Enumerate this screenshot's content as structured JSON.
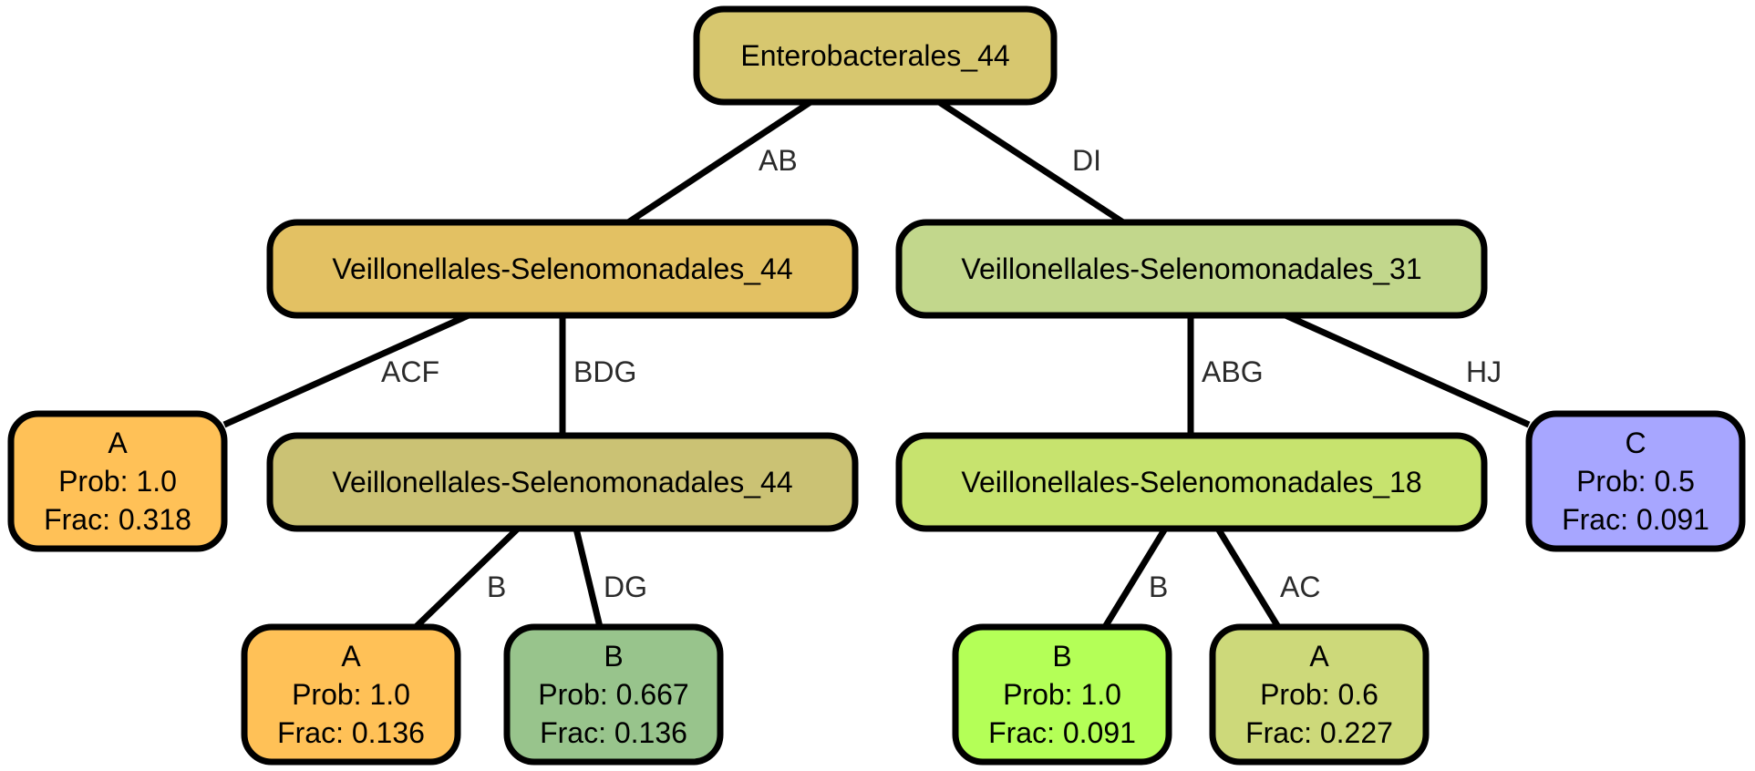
{
  "nodes": [
    {
      "id": "root",
      "lines": [
        "Enterobacterales_44"
      ],
      "fill": "#d7c76f"
    },
    {
      "id": "vs44a",
      "lines": [
        "Veillonellales-Selenomonadales_44"
      ],
      "fill": "#e3c163"
    },
    {
      "id": "vs31",
      "lines": [
        "Veillonellales-Selenomonadales_31"
      ],
      "fill": "#c2d78c"
    },
    {
      "id": "leafA1",
      "lines": [
        "A",
        "Prob: 1.0",
        "Frac: 0.318"
      ],
      "fill": "#ffc157"
    },
    {
      "id": "vs44b",
      "lines": [
        "Veillonellales-Selenomonadales_44"
      ],
      "fill": "#cbc274"
    },
    {
      "id": "vs18",
      "lines": [
        "Veillonellales-Selenomonadales_18"
      ],
      "fill": "#c7e36e"
    },
    {
      "id": "leafC",
      "lines": [
        "C",
        "Prob: 0.5",
        "Frac: 0.091"
      ],
      "fill": "#a7a6ff"
    },
    {
      "id": "leafA2",
      "lines": [
        "A",
        "Prob: 1.0",
        "Frac: 0.136"
      ],
      "fill": "#ffc157"
    },
    {
      "id": "leafB1",
      "lines": [
        "B",
        "Prob: 0.667",
        "Frac: 0.136"
      ],
      "fill": "#98c48c"
    },
    {
      "id": "leafB2",
      "lines": [
        "B",
        "Prob: 1.0",
        "Frac: 0.091"
      ],
      "fill": "#b4ff57"
    },
    {
      "id": "leafA3",
      "lines": [
        "A",
        "Prob: 0.6",
        "Frac: 0.227"
      ],
      "fill": "#cdd97a"
    }
  ],
  "edges": [
    {
      "from": "root",
      "to": "vs44a",
      "label": "AB"
    },
    {
      "from": "root",
      "to": "vs31",
      "label": "DI"
    },
    {
      "from": "vs44a",
      "to": "leafA1",
      "label": "ACF"
    },
    {
      "from": "vs44a",
      "to": "vs44b",
      "label": "BDG"
    },
    {
      "from": "vs31",
      "to": "vs18",
      "label": "ABG"
    },
    {
      "from": "vs31",
      "to": "leafC",
      "label": "HJ"
    },
    {
      "from": "vs44b",
      "to": "leafA2",
      "label": "B"
    },
    {
      "from": "vs44b",
      "to": "leafB1",
      "label": "DG"
    },
    {
      "from": "vs18",
      "to": "leafB2",
      "label": "B"
    },
    {
      "from": "vs18",
      "to": "leafA3",
      "label": "AC"
    }
  ]
}
